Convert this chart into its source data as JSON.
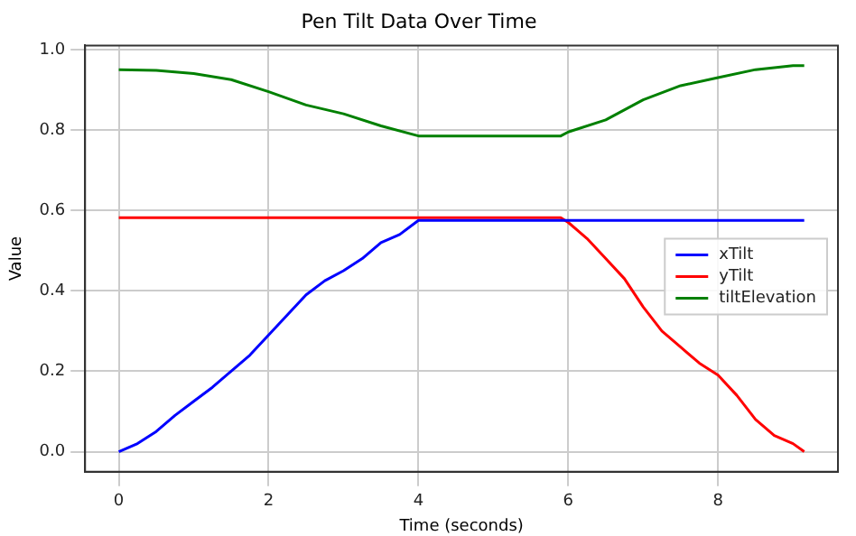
{
  "chart_data": {
    "type": "line",
    "title": "Pen Tilt Data Over Time",
    "xlabel": "Time (seconds)",
    "ylabel": "Value",
    "xlim": [
      -0.45,
      9.6
    ],
    "xticks": [
      0,
      2,
      4,
      6,
      8
    ],
    "ylim": [
      -0.05,
      1.01
    ],
    "yticks": [
      {
        "value": 0,
        "label": "0.0"
      },
      0.2,
      0.4,
      0.6,
      0.8,
      {
        "value": 1,
        "label": "1.0"
      }
    ],
    "grid": true,
    "legend": "right",
    "marker": "none",
    "line_style": "solid",
    "series": [
      {
        "name": "xTilt",
        "color": "#0000ff",
        "x": [
          0,
          0.25,
          0.5,
          0.75,
          1,
          1.25,
          1.5,
          1.75,
          2,
          2.25,
          2.5,
          2.75,
          3,
          3.25,
          3.5,
          3.75,
          4,
          5,
          6,
          7,
          8,
          9.15
        ],
        "values": [
          0,
          0.02,
          0.05,
          0.09,
          0.125,
          0.16,
          0.2,
          0.24,
          0.29,
          0.34,
          0.39,
          0.425,
          0.45,
          0.48,
          0.52,
          0.54,
          0.575,
          0.575,
          0.575,
          0.575,
          0.575,
          0.575
        ]
      },
      {
        "name": "yTilt",
        "color": "#ff0000",
        "x": [
          0,
          2,
          4,
          5.9,
          6,
          6.25,
          6.5,
          6.75,
          7,
          7.25,
          7.5,
          7.75,
          8,
          8.25,
          8.5,
          8.75,
          9,
          9.15
        ],
        "values": [
          0.582,
          0.582,
          0.582,
          0.582,
          0.57,
          0.53,
          0.48,
          0.43,
          0.36,
          0.3,
          0.26,
          0.22,
          0.19,
          0.14,
          0.08,
          0.04,
          0.02,
          0
        ]
      },
      {
        "name": "tiltElevation",
        "color": "#008000",
        "x": [
          0,
          0.5,
          1,
          1.5,
          2,
          2.5,
          3,
          3.5,
          4,
          5,
          5.9,
          6,
          6.5,
          7,
          7.5,
          8,
          8.5,
          9,
          9.15
        ],
        "values": [
          0.95,
          0.948,
          0.94,
          0.925,
          0.895,
          0.862,
          0.84,
          0.81,
          0.785,
          0.785,
          0.785,
          0.795,
          0.825,
          0.875,
          0.91,
          0.93,
          0.95,
          0.96,
          0.96
        ]
      }
    ]
  }
}
